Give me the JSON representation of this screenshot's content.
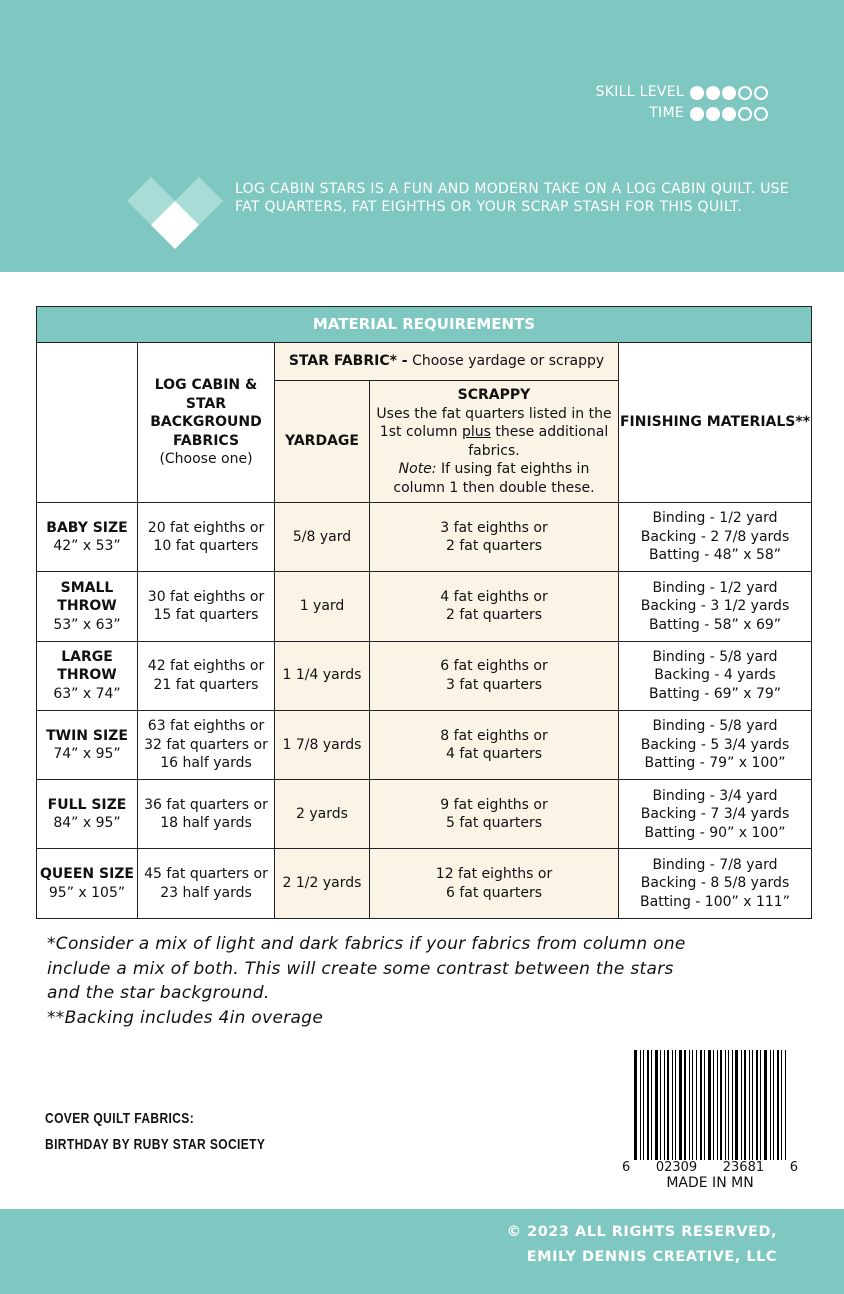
{
  "colors": {
    "teal": "#7fc8c1",
    "cream": "#fbf3e6"
  },
  "levels": {
    "skill_label": "SKILL LEVEL",
    "skill_value": 3,
    "time_label": "TIME",
    "time_value": 3,
    "max": 5
  },
  "intro": "LOG CABIN STARS IS A FUN AND MODERN TAKE ON A LOG CABIN QUILT. USE FAT QUARTERS, FAT EIGHTHS OR YOUR SCRAP STASH FOR THIS QUILT.",
  "table": {
    "title": "MATERIAL REQUIREMENTS",
    "col1_head": "LOG CABIN & STAR BACKGROUND FABRICS",
    "col1_sub": "(Choose one)",
    "star_head": "STAR FABRIC* -",
    "star_sub": "Choose yardage or scrappy",
    "yardage_head": "YARDAGE",
    "scrappy_head": "SCRAPPY",
    "scrappy_l1": "Uses the fat quarters listed in the 1st column ",
    "scrappy_plus": "plus",
    "scrappy_l2": " these additional fabrics.",
    "note_label": "Note:",
    "note_text": " If using fat eighths in column 1 then double these.",
    "finishing_head": "FINISHING MATERIALS**",
    "rows": [
      {
        "size": "BABY SIZE",
        "dims": "42” x 53”",
        "bg": [
          "20 fat eighths or",
          "10 fat quarters"
        ],
        "yardage": "5/8 yard",
        "scrappy": [
          "3 fat eighths or",
          "2 fat quarters"
        ],
        "finishing": [
          "Binding - 1/2 yard",
          "Backing - 2 7/8 yards",
          "Batting - 48” x 58”"
        ]
      },
      {
        "size": "SMALL THROW",
        "dims": "53” x 63”",
        "bg": [
          "30 fat eighths or",
          "15 fat quarters"
        ],
        "yardage": "1 yard",
        "scrappy": [
          "4 fat eighths or",
          "2 fat quarters"
        ],
        "finishing": [
          "Binding - 1/2 yard",
          "Backing -  3 1/2 yards",
          "Batting -  58” x 69”"
        ]
      },
      {
        "size": "LARGE THROW",
        "dims": "63” x 74”",
        "bg": [
          "42 fat eighths or",
          "21 fat quarters"
        ],
        "yardage": "1 1/4 yards",
        "scrappy": [
          "6 fat eighths or",
          "3 fat quarters"
        ],
        "finishing": [
          "Binding -  5/8 yard",
          "Backing -  4 yards",
          "Batting -  69” x 79”"
        ]
      },
      {
        "size": "TWIN SIZE",
        "dims": "74” x 95”",
        "bg": [
          "63 fat eighths or",
          "32 fat quarters or",
          "16 half yards"
        ],
        "yardage": "1 7/8 yards",
        "scrappy": [
          "8 fat eighths or",
          "4 fat quarters"
        ],
        "finishing": [
          "Binding -  5/8 yard",
          "Backing -  5 3/4 yards",
          "Batting -  79” x 100”"
        ]
      },
      {
        "size": "FULL SIZE",
        "dims": "84” x 95”",
        "bg": [
          "36 fat quarters or",
          "18 half yards"
        ],
        "yardage": "2 yards",
        "scrappy": [
          "9 fat eighths or",
          "5 fat quarters"
        ],
        "finishing": [
          "Binding - 3/4 yard",
          "Backing -  7 3/4 yards",
          "Batting -  90” x 100”"
        ]
      },
      {
        "size": "QUEEN SIZE",
        "dims": "95” x 105”",
        "bg": [
          "45 fat quarters or",
          "23 half yards"
        ],
        "yardage": "2 1/2 yards",
        "scrappy": [
          "12 fat eighths or",
          "6 fat quarters"
        ],
        "finishing": [
          "Binding -  7/8 yard",
          "Backing -  8 5/8 yards",
          "Batting -  100” x 111”"
        ]
      }
    ]
  },
  "notes": [
    "*Consider a mix of light and dark fabrics if your fabrics from column one",
    "include a mix of both.  This will create some contrast between the stars",
    "and the star background.",
    "**Backing includes 4in overage"
  ],
  "cover": [
    "COVER QUILT FABRICS:",
    "BIRTHDAY BY RUBY STAR SOCIETY"
  ],
  "barcode": {
    "lead": "6",
    "left": "02309",
    "right": "23681",
    "check": "6",
    "made_in": "MADE IN MN"
  },
  "footer": [
    "© 2023 ALL RIGHTS RESERVED,",
    "EMILY DENNIS CREATIVE, LLC"
  ]
}
